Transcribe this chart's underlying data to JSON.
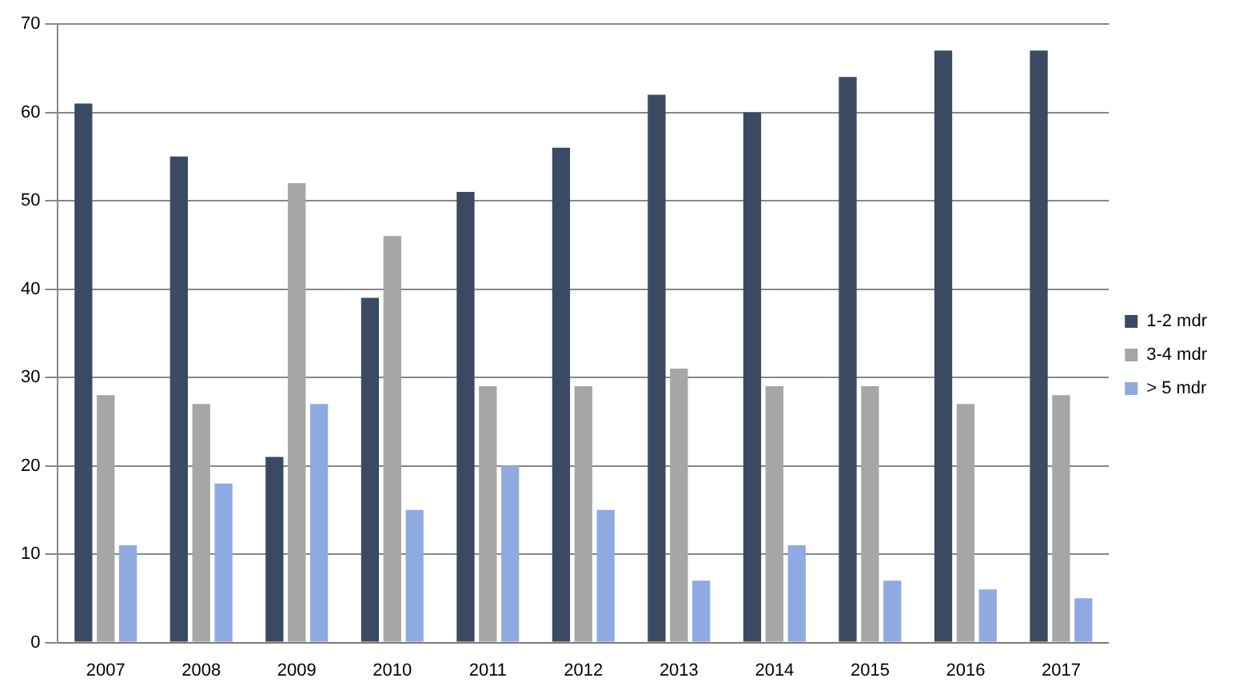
{
  "chart_data": {
    "type": "bar",
    "categories": [
      "2007",
      "2008",
      "2009",
      "2010",
      "2011",
      "2012",
      "2013",
      "2014",
      "2015",
      "2016",
      "2017"
    ],
    "series": [
      {
        "name": "1-2 mdr",
        "color": "#3b4a63",
        "values": [
          61,
          55,
          21,
          39,
          51,
          56,
          62,
          60,
          64,
          67,
          67
        ]
      },
      {
        "name": "3-4 mdr",
        "color": "#a6a6a6",
        "values": [
          28,
          27,
          52,
          46,
          29,
          29,
          31,
          29,
          29,
          27,
          28
        ]
      },
      {
        "name": "> 5 mdr",
        "color": "#8eaae0",
        "values": [
          11,
          18,
          27,
          15,
          20,
          15,
          7,
          11,
          7,
          6,
          5
        ]
      }
    ],
    "ylim": [
      0,
      70
    ],
    "yticks": [
      0,
      10,
      20,
      30,
      40,
      50,
      60,
      70
    ],
    "grid": "y",
    "legend": "right"
  }
}
